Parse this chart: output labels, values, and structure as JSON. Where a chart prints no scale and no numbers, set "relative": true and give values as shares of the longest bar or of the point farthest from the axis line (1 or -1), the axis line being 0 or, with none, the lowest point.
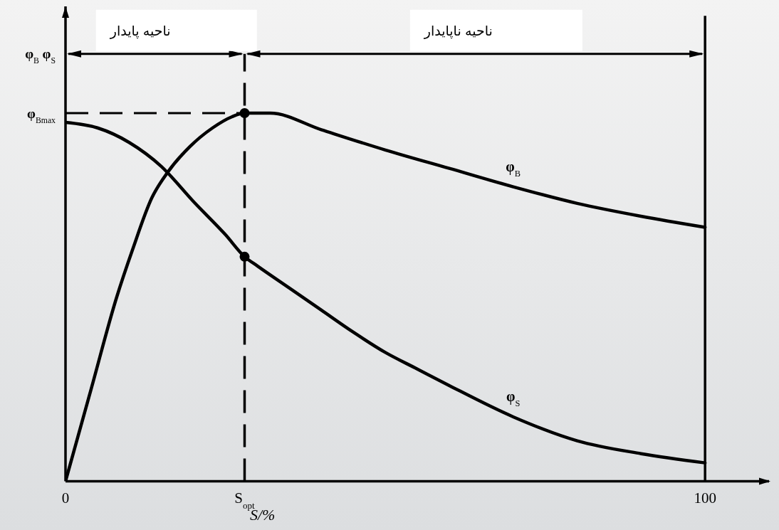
{
  "chart_data": {
    "type": "line",
    "relative": true,
    "xlabel": "S/%",
    "ylabel": "φ$_{B}$ φ$_{S}$",
    "xlim": [
      0,
      110
    ],
    "xticks": [
      0,
      {
        "value": 28,
        "label": "S$_{opt}$"
      },
      100
    ],
    "series": [
      {
        "name": "φ$_{B}$",
        "color": "#000000",
        "x": [
          0,
          4,
          8,
          10.5,
          13.5,
          16,
          19.5,
          23,
          26,
          28,
          32,
          40,
          50,
          60,
          70,
          80,
          90,
          100
        ],
        "values": [
          0,
          0.25,
          0.5,
          0.63,
          0.77,
          0.84,
          0.91,
          0.96,
          0.99,
          1,
          1,
          0.955,
          0.9,
          0.85,
          0.8,
          0.755,
          0.72,
          0.69
        ]
      },
      {
        "name": "φ$_{S}$",
        "color": "#000000",
        "x": [
          0,
          5,
          10,
          15,
          20,
          25,
          28,
          30,
          35,
          40,
          45,
          50,
          55,
          60,
          70,
          80,
          90,
          100
        ],
        "values": [
          0.975,
          0.96,
          0.92,
          0.855,
          0.76,
          0.67,
          0.61,
          0.585,
          0.525,
          0.465,
          0.405,
          0.35,
          0.305,
          0.26,
          0.175,
          0.11,
          0.075,
          0.05
        ]
      },
      {
        "type": "scatter",
        "color": "#000000",
        "marker": "circle",
        "x": [
          28,
          28
        ],
        "values": [
          1,
          0.61
        ]
      }
    ],
    "ref_lines": [
      {
        "axis": "y",
        "value": 1,
        "label": "φ$_{Bmax}$",
        "line_style": "dashed",
        "color": "#000000"
      },
      {
        "axis": "x",
        "value": 28,
        "line_style": "dashed",
        "color": "#000000"
      },
      {
        "axis": "x",
        "value": 100,
        "line_style": "solid",
        "color": "#000000"
      }
    ],
    "annotations": [
      "ناحیه پایدار",
      "ناحیه ناپایدار"
    ],
    "marker": "none",
    "line_style": "solid",
    "grid": false,
    "legend": false
  }
}
